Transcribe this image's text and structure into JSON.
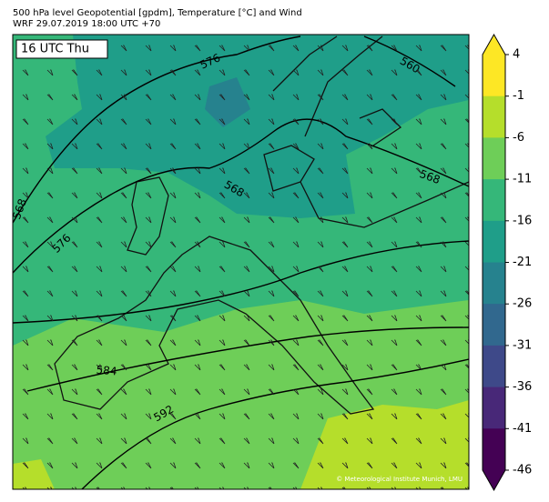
{
  "header": {
    "line1": "500 hPa level Geopotential [gpdm], Temperature [°C] and Wind",
    "line2": "WRF 29.07.2019 18:00 UTC +70"
  },
  "map": {
    "time_label": "16 UTC Thu",
    "credit": "© Meteorological Institute Munich, LMU",
    "contour_labels": [
      576,
      560,
      568,
      568,
      576,
      568,
      584,
      592
    ]
  },
  "colorbar": {
    "ticks": [
      4,
      -1,
      -6,
      -11,
      -16,
      -21,
      -26,
      -31,
      -36,
      -41,
      -46
    ],
    "colors": [
      "#fde725",
      "#b5de2b",
      "#6ece58",
      "#35b779",
      "#1f9e89",
      "#26828e",
      "#31688e",
      "#3e4989",
      "#482878",
      "#440154"
    ]
  }
}
